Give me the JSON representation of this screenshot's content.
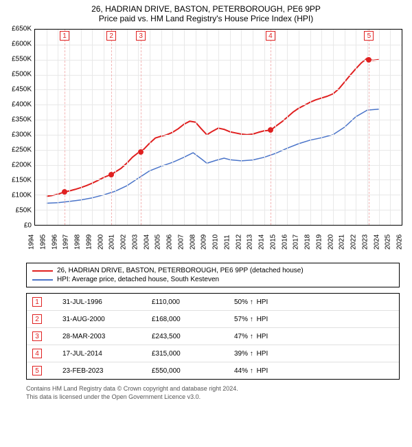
{
  "title_main": "26, HADRIAN DRIVE, BASTON, PETERBOROUGH, PE6 9PP",
  "title_sub": "Price paid vs. HM Land Registry's House Price Index (HPI)",
  "chart": {
    "type": "line",
    "background_color": "#ffffff",
    "grid_color": "#e8e8e8",
    "axis_color": "#000000",
    "x": {
      "min": 1994,
      "max": 2026,
      "tick_step": 1,
      "label_fontsize": 10,
      "label_rotation_deg": -90
    },
    "y": {
      "min": 0,
      "max": 650000,
      "tick_step": 50000,
      "label_prefix": "£",
      "label_suffix": "K",
      "label_divisor": 1000,
      "label_fontsize": 10
    },
    "marker_line_color": "#f2b3b3",
    "marker_box_border": "#e02020",
    "marker_box_text": "#e02020",
    "markers": [
      {
        "n": "1",
        "year": 1996.58
      },
      {
        "n": "2",
        "year": 2000.66
      },
      {
        "n": "3",
        "year": 2003.24
      },
      {
        "n": "4",
        "year": 2014.55
      },
      {
        "n": "5",
        "year": 2023.15
      }
    ],
    "series": [
      {
        "id": "property",
        "label": "26, HADRIAN DRIVE, BASTON, PETERBOROUGH, PE6 9PP (detached house)",
        "color": "#e02020",
        "line_width": 2,
        "point_radius": 4,
        "sale_points": [
          {
            "year": 1996.58,
            "value": 110000
          },
          {
            "year": 2000.66,
            "value": 168000
          },
          {
            "year": 2003.24,
            "value": 243500
          },
          {
            "year": 2014.55,
            "value": 315000
          },
          {
            "year": 2023.15,
            "value": 550000
          }
        ],
        "data": [
          [
            1995.0,
            95000
          ],
          [
            1995.5,
            98000
          ],
          [
            1996.0,
            102000
          ],
          [
            1996.58,
            110000
          ],
          [
            1997.0,
            113000
          ],
          [
            1997.5,
            118000
          ],
          [
            1998.0,
            124000
          ],
          [
            1998.5,
            131000
          ],
          [
            1999.0,
            139000
          ],
          [
            1999.5,
            148000
          ],
          [
            2000.0,
            158000
          ],
          [
            2000.66,
            168000
          ],
          [
            2001.0,
            176000
          ],
          [
            2001.5,
            188000
          ],
          [
            2002.0,
            205000
          ],
          [
            2002.5,
            225000
          ],
          [
            2003.0,
            240000
          ],
          [
            2003.24,
            243500
          ],
          [
            2003.5,
            252000
          ],
          [
            2004.0,
            272000
          ],
          [
            2004.5,
            289000
          ],
          [
            2005.0,
            295000
          ],
          [
            2005.5,
            300000
          ],
          [
            2006.0,
            308000
          ],
          [
            2006.5,
            320000
          ],
          [
            2007.0,
            335000
          ],
          [
            2007.5,
            345000
          ],
          [
            2008.0,
            342000
          ],
          [
            2008.5,
            320000
          ],
          [
            2009.0,
            300000
          ],
          [
            2009.5,
            312000
          ],
          [
            2010.0,
            322000
          ],
          [
            2010.5,
            318000
          ],
          [
            2011.0,
            310000
          ],
          [
            2011.5,
            306000
          ],
          [
            2012.0,
            302000
          ],
          [
            2012.5,
            300000
          ],
          [
            2013.0,
            302000
          ],
          [
            2013.5,
            308000
          ],
          [
            2014.0,
            313000
          ],
          [
            2014.55,
            315000
          ],
          [
            2015.0,
            328000
          ],
          [
            2015.5,
            342000
          ],
          [
            2016.0,
            358000
          ],
          [
            2016.5,
            375000
          ],
          [
            2017.0,
            388000
          ],
          [
            2017.5,
            398000
          ],
          [
            2018.0,
            408000
          ],
          [
            2018.5,
            416000
          ],
          [
            2019.0,
            422000
          ],
          [
            2019.5,
            428000
          ],
          [
            2020.0,
            436000
          ],
          [
            2020.5,
            452000
          ],
          [
            2021.0,
            475000
          ],
          [
            2021.5,
            498000
          ],
          [
            2022.0,
            520000
          ],
          [
            2022.5,
            540000
          ],
          [
            2023.0,
            555000
          ],
          [
            2023.15,
            550000
          ],
          [
            2023.5,
            548000
          ],
          [
            2024.0,
            550000
          ]
        ]
      },
      {
        "id": "hpi",
        "label": "HPI: Average price, detached house, South Kesteven",
        "color": "#4a74c9",
        "line_width": 1.5,
        "data": [
          [
            1995.0,
            72000
          ],
          [
            1996.0,
            74000
          ],
          [
            1997.0,
            78000
          ],
          [
            1998.0,
            83000
          ],
          [
            1999.0,
            90000
          ],
          [
            2000.0,
            100000
          ],
          [
            2001.0,
            112000
          ],
          [
            2002.0,
            130000
          ],
          [
            2003.0,
            155000
          ],
          [
            2004.0,
            180000
          ],
          [
            2005.0,
            195000
          ],
          [
            2006.0,
            208000
          ],
          [
            2007.0,
            225000
          ],
          [
            2007.8,
            240000
          ],
          [
            2008.5,
            220000
          ],
          [
            2009.0,
            205000
          ],
          [
            2009.8,
            215000
          ],
          [
            2010.5,
            222000
          ],
          [
            2011.0,
            217000
          ],
          [
            2012.0,
            213000
          ],
          [
            2013.0,
            216000
          ],
          [
            2014.0,
            225000
          ],
          [
            2015.0,
            238000
          ],
          [
            2016.0,
            255000
          ],
          [
            2017.0,
            270000
          ],
          [
            2018.0,
            282000
          ],
          [
            2019.0,
            290000
          ],
          [
            2020.0,
            300000
          ],
          [
            2021.0,
            325000
          ],
          [
            2022.0,
            360000
          ],
          [
            2023.0,
            382000
          ],
          [
            2024.0,
            385000
          ]
        ]
      }
    ]
  },
  "legend": [
    {
      "series": "property"
    },
    {
      "series": "hpi"
    }
  ],
  "events": [
    {
      "n": "1",
      "date": "31-JUL-1996",
      "price": "£110,000",
      "delta_pct": "50%",
      "arrow": "↑",
      "suffix": "HPI"
    },
    {
      "n": "2",
      "date": "31-AUG-2000",
      "price": "£168,000",
      "delta_pct": "57%",
      "arrow": "↑",
      "suffix": "HPI"
    },
    {
      "n": "3",
      "date": "28-MAR-2003",
      "price": "£243,500",
      "delta_pct": "47%",
      "arrow": "↑",
      "suffix": "HPI"
    },
    {
      "n": "4",
      "date": "17-JUL-2014",
      "price": "£315,000",
      "delta_pct": "39%",
      "arrow": "↑",
      "suffix": "HPI"
    },
    {
      "n": "5",
      "date": "23-FEB-2023",
      "price": "£550,000",
      "delta_pct": "44%",
      "arrow": "↑",
      "suffix": "HPI"
    }
  ],
  "footer_line1": "Contains HM Land Registry data © Crown copyright and database right 2024.",
  "footer_line2": "This data is licensed under the Open Government Licence v3.0."
}
